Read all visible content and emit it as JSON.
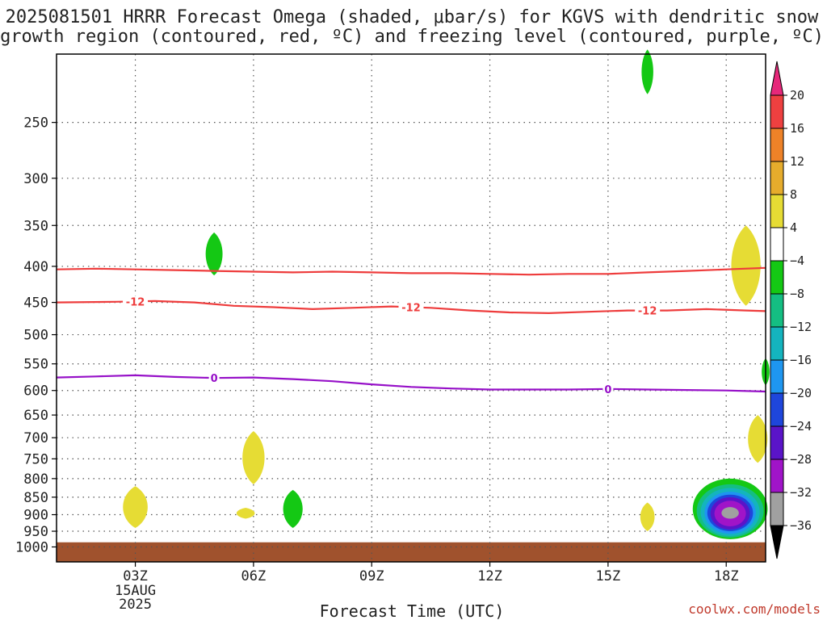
{
  "title": {
    "line1": "2025081501 HRRR Forecast Omega (shaded, μbar/s) for KGVS with dendritic snow",
    "line2": "growth region (contoured, red, ºC) and freezing level (contoured, purple, ºC)"
  },
  "xlabel": "Forecast Time (UTC)",
  "watermark": "coolwx.com/models",
  "chart_data": {
    "type": "heatmap",
    "title": "2025081501 HRRR Forecast Omega (shaded, μbar/s) for KGVS with dendritic snow growth region (contoured, red, ºC) and freezing level (contoured, purple, ºC)",
    "xlabel": "Forecast Time (UTC)",
    "ylabel": "",
    "x_unit": "hours UTC since 2025-08-15 00Z",
    "xlim": [
      1,
      19
    ],
    "x_ticks": [
      {
        "value": 3,
        "label": "03Z",
        "sub": [
          "15AUG",
          "2025"
        ]
      },
      {
        "value": 6,
        "label": "06Z"
      },
      {
        "value": 9,
        "label": "09Z"
      },
      {
        "value": 12,
        "label": "12Z"
      },
      {
        "value": 15,
        "label": "15Z"
      },
      {
        "value": 18,
        "label": "18Z"
      }
    ],
    "y_scale": "log-pressure (hPa, inverted)",
    "ylim": [
      1050,
      200
    ],
    "y_ticks": [
      250,
      300,
      350,
      400,
      450,
      500,
      550,
      600,
      650,
      700,
      750,
      800,
      850,
      900,
      950,
      1000
    ],
    "grid": true,
    "colorbar": {
      "unit": "μbar/s",
      "labels": [
        "20",
        "16",
        "12",
        "8",
        "4",
        "−4",
        "−8",
        "−12",
        "−16",
        "−20",
        "−24",
        "−28",
        "−32",
        "−36"
      ],
      "bins": [
        {
          "range": [
            16,
            20
          ],
          "color": "#ee4040"
        },
        {
          "range": [
            12,
            16
          ],
          "color": "#ee8228"
        },
        {
          "range": [
            8,
            12
          ],
          "color": "#e6ac2c"
        },
        {
          "range": [
            4,
            8
          ],
          "color": "#e6dc34"
        },
        {
          "range": [
            -4,
            4
          ],
          "color": "#ffffff"
        },
        {
          "range": [
            -8,
            -4
          ],
          "color": "#14c814"
        },
        {
          "range": [
            -12,
            -8
          ],
          "color": "#14be82"
        },
        {
          "range": [
            -16,
            -12
          ],
          "color": "#14b4be"
        },
        {
          "range": [
            -20,
            -16
          ],
          "color": "#1e96f0"
        },
        {
          "range": [
            -24,
            -20
          ],
          "color": "#1e46dc"
        },
        {
          "range": [
            -28,
            -24
          ],
          "color": "#5a14c8"
        },
        {
          "range": [
            -32,
            -28
          ],
          "color": "#a014c8"
        },
        {
          "range": [
            -36,
            -32
          ],
          "color": "#a0a0a0"
        }
      ],
      "top_arrow_color": "#e6287a",
      "bottom_arrow_color": "#000000"
    },
    "ground": {
      "pressure_above": 985,
      "color": "#a0522d"
    },
    "contours": [
      {
        "name": "-12 ºC",
        "label": "-12",
        "color": "#ee3c3c",
        "label_x": [
          3,
          10,
          16
        ],
        "points": [
          [
            1,
            450
          ],
          [
            2.5,
            449
          ],
          [
            3.5,
            448
          ],
          [
            4.5,
            450
          ],
          [
            5.5,
            455
          ],
          [
            6.5,
            457
          ],
          [
            7.5,
            460
          ],
          [
            8.5,
            458
          ],
          [
            9.5,
            456
          ],
          [
            10.5,
            458
          ],
          [
            11.5,
            462
          ],
          [
            12.5,
            465
          ],
          [
            13.5,
            466
          ],
          [
            14.5,
            464
          ],
          [
            15.5,
            462
          ],
          [
            16.5,
            462
          ],
          [
            17.5,
            460
          ],
          [
            18.5,
            462
          ],
          [
            19,
            463
          ]
        ]
      },
      {
        "name": "upper dendritic bound",
        "label": "",
        "color": "#ee3c3c",
        "label_x": [],
        "points": [
          [
            1,
            404
          ],
          [
            2,
            403
          ],
          [
            3,
            404
          ],
          [
            4,
            405
          ],
          [
            5,
            406
          ],
          [
            6,
            407
          ],
          [
            7,
            408
          ],
          [
            8,
            407
          ],
          [
            9,
            408
          ],
          [
            10,
            409
          ],
          [
            11,
            409
          ],
          [
            12,
            410
          ],
          [
            13,
            411
          ],
          [
            14,
            410
          ],
          [
            15,
            410
          ],
          [
            16,
            408
          ],
          [
            17,
            406
          ],
          [
            18,
            404
          ],
          [
            19,
            402
          ]
        ]
      },
      {
        "name": "0 ºC",
        "label": "0",
        "color": "#9610c8",
        "label_x": [
          5,
          15
        ],
        "points": [
          [
            1,
            575
          ],
          [
            2,
            573
          ],
          [
            3,
            571
          ],
          [
            4,
            574
          ],
          [
            5,
            576
          ],
          [
            6,
            575
          ],
          [
            7,
            578
          ],
          [
            8,
            582
          ],
          [
            9,
            588
          ],
          [
            10,
            593
          ],
          [
            11,
            596
          ],
          [
            12,
            598
          ],
          [
            13,
            598
          ],
          [
            14,
            598
          ],
          [
            15,
            597
          ],
          [
            16,
            598
          ],
          [
            17,
            599
          ],
          [
            18,
            600
          ],
          [
            19,
            602
          ]
        ]
      }
    ],
    "shaded_regions": [
      {
        "value": -6,
        "color": "#14c814",
        "center": [
          16,
          212
        ],
        "half_width": 0.18,
        "p_top": 197,
        "p_bottom": 228
      },
      {
        "value": -6,
        "color": "#14c814",
        "center": [
          5,
          385
        ],
        "half_width": 0.26,
        "p_top": 358,
        "p_bottom": 412
      },
      {
        "value": 6,
        "color": "#e6dc34",
        "center": [
          6,
          745
        ],
        "half_width": 0.34,
        "p_top": 685,
        "p_bottom": 815
      },
      {
        "value": 6,
        "color": "#e6dc34",
        "center": [
          3,
          875
        ],
        "half_width": 0.38,
        "p_top": 820,
        "p_bottom": 940
      },
      {
        "value": -6,
        "color": "#14c814",
        "center": [
          7,
          880
        ],
        "half_width": 0.3,
        "p_top": 830,
        "p_bottom": 940
      },
      {
        "value": 6,
        "color": "#e6dc34",
        "center": [
          5.8,
          896
        ],
        "half_width": 0.28,
        "p_top": 880,
        "p_bottom": 912
      },
      {
        "value": 6,
        "color": "#e6dc34",
        "center": [
          16,
          905
        ],
        "half_width": 0.22,
        "p_top": 865,
        "p_bottom": 950
      },
      {
        "value": 6,
        "color": "#e6dc34",
        "center": [
          18.5,
          400
        ],
        "half_width": 0.45,
        "p_top": 350,
        "p_bottom": 455
      },
      {
        "value": 6,
        "color": "#e6dc34",
        "center": [
          18.8,
          705
        ],
        "half_width": 0.3,
        "p_top": 650,
        "p_bottom": 760
      },
      {
        "value": -6,
        "color": "#14c814",
        "center": [
          19,
          565
        ],
        "half_width": 0.12,
        "p_top": 540,
        "p_bottom": 590
      }
    ],
    "max_ascent_core": {
      "center": [
        18.1,
        895
      ],
      "layers": [
        {
          "value": -6,
          "color": "#14c814",
          "rx": 0.95,
          "p_top": 800,
          "p_bottom": 975
        },
        {
          "value": -10,
          "color": "#14be82",
          "rx": 0.85,
          "p_top": 815,
          "p_bottom": 970
        },
        {
          "value": -14,
          "color": "#14b4be",
          "rx": 0.75,
          "p_top": 825,
          "p_bottom": 965
        },
        {
          "value": -18,
          "color": "#1e96f0",
          "rx": 0.65,
          "p_top": 835,
          "p_bottom": 958
        },
        {
          "value": -22,
          "color": "#1e46dc",
          "rx": 0.58,
          "p_top": 843,
          "p_bottom": 950
        },
        {
          "value": -26,
          "color": "#5a14c8",
          "rx": 0.5,
          "p_top": 850,
          "p_bottom": 945
        },
        {
          "value": -30,
          "color": "#a014c8",
          "rx": 0.4,
          "p_top": 860,
          "p_bottom": 935
        },
        {
          "value": -34,
          "color": "#a0a0a0",
          "rx": 0.22,
          "p_top": 878,
          "p_bottom": 912
        }
      ]
    }
  }
}
